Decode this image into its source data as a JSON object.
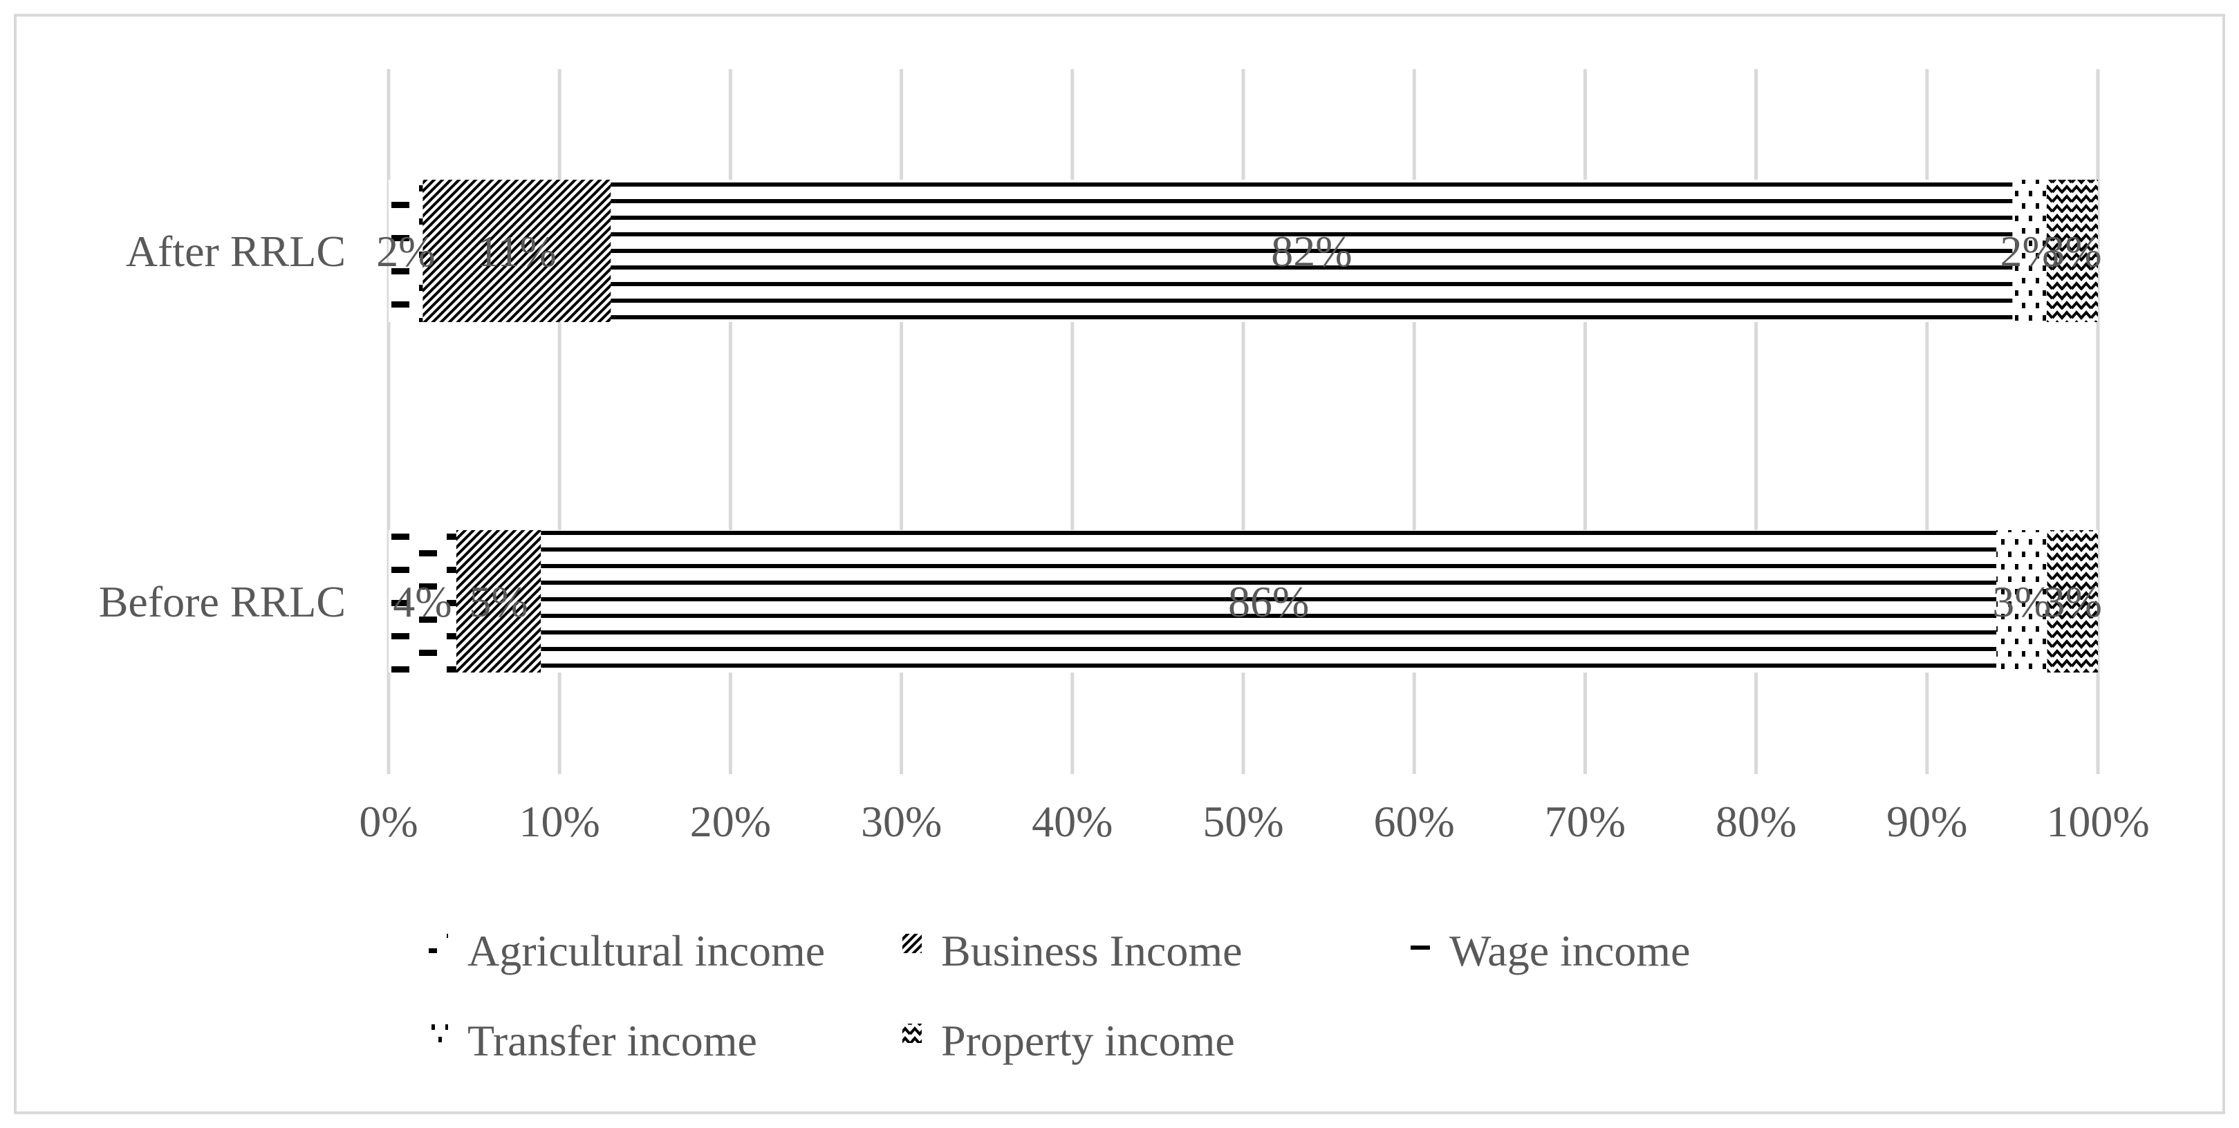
{
  "chart_data": {
    "type": "bar",
    "orientation": "horizontal",
    "stacked": "percent",
    "categories": [
      "After RRLC",
      "Before RRLC"
    ],
    "series": [
      {
        "name": "Agricultural income",
        "values": [
          2,
          4
        ],
        "labels": [
          "2%",
          "4%"
        ],
        "pattern": "dashes"
      },
      {
        "name": "Business Income",
        "values": [
          11,
          5
        ],
        "labels": [
          "11%",
          "5%"
        ],
        "pattern": "diagonal"
      },
      {
        "name": "Wage income",
        "values": [
          82,
          86
        ],
        "labels": [
          "82%",
          "86%"
        ],
        "pattern": "horizontal"
      },
      {
        "name": "Transfer income",
        "values": [
          2,
          3
        ],
        "labels": [
          "2%",
          "3%"
        ],
        "pattern": "dots"
      },
      {
        "name": "Property income",
        "values": [
          3,
          3
        ],
        "labels": [
          "3%",
          "3%"
        ],
        "pattern": "zigzag"
      }
    ],
    "xaxis": {
      "ticks": [
        0,
        10,
        20,
        30,
        40,
        50,
        60,
        70,
        80,
        90,
        100
      ],
      "tick_labels": [
        "0%",
        "10%",
        "20%",
        "30%",
        "40%",
        "50%",
        "60%",
        "70%",
        "80%",
        "90%",
        "100%"
      ],
      "range": [
        0,
        100
      ]
    },
    "grid": true,
    "legend": "bottom",
    "title": "",
    "xlabel": "",
    "ylabel": ""
  }
}
